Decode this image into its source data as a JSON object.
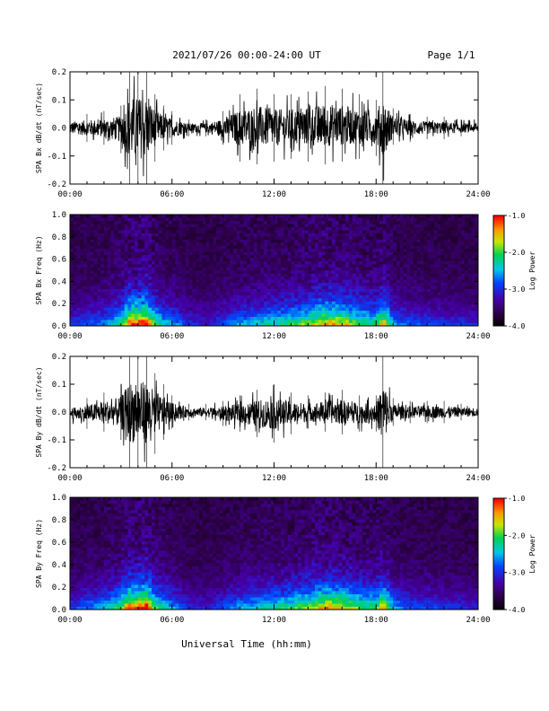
{
  "header": {
    "title": "2021/07/26  00:00-24:00 UT",
    "page": "Page 1/1"
  },
  "footer": {
    "xlabel": "Universal Time (hh:mm)"
  },
  "chart_data": [
    {
      "type": "line",
      "title": "",
      "ylabel": "SPA Bx dB/dt (nT/sec)",
      "xlabel": "Universal Time (hh:mm)",
      "xlim": [
        "00:00",
        "24:00"
      ],
      "xticks": [
        "00:00",
        "06:00",
        "12:00",
        "18:00",
        "24:00"
      ],
      "ylim": [
        -0.2,
        0.2
      ],
      "yticks": [
        "-0.2",
        "-0.1",
        "0.0",
        "0.1",
        "0.2"
      ],
      "x_hours": [
        0,
        1,
        2,
        3,
        3.5,
        4,
        4.5,
        5,
        5.5,
        6,
        7,
        8,
        9,
        10,
        11,
        12,
        13,
        14,
        15,
        16,
        17,
        18,
        18.4,
        19,
        20,
        21,
        22,
        23,
        24
      ],
      "series": [
        {
          "values": [
            0.04,
            0.05,
            0.06,
            0.08,
            0.2,
            0.2,
            0.2,
            0.12,
            0.08,
            0.06,
            0.03,
            0.03,
            0.06,
            0.12,
            0.14,
            0.12,
            0.12,
            0.13,
            0.15,
            0.14,
            0.12,
            0.1,
            0.2,
            0.07,
            0.05,
            0.04,
            0.04,
            0.03,
            0.03
          ]
        },
        {
          "values": [
            -0.04,
            -0.05,
            -0.06,
            -0.09,
            -0.2,
            -0.2,
            -0.2,
            -0.12,
            -0.08,
            -0.06,
            -0.03,
            -0.03,
            -0.06,
            -0.12,
            -0.13,
            -0.12,
            -0.11,
            -0.12,
            -0.13,
            -0.12,
            -0.11,
            -0.1,
            -0.2,
            -0.06,
            -0.05,
            -0.04,
            -0.04,
            -0.03,
            -0.03
          ]
        }
      ]
    },
    {
      "type": "heatmap",
      "title": "",
      "ylabel": "SPA Bx Freq (Hz)",
      "xlim": [
        "00:00",
        "24:00"
      ],
      "xticks": [
        "00:00",
        "06:00",
        "12:00",
        "18:00",
        "24:00"
      ],
      "ylim": [
        0.0,
        1.0
      ],
      "yticks": [
        "0.0",
        "0.2",
        "0.4",
        "0.6",
        "0.8",
        "1.0"
      ],
      "colorbar": {
        "label": "Log Power",
        "range": [
          -4.0,
          -1.0
        ],
        "ticks": [
          "-1.0",
          "-2.0",
          "-3.0",
          "-4.0"
        ],
        "colormap": "rainbow"
      },
      "x_hours": [
        0,
        1,
        2,
        3,
        3.5,
        4,
        4.5,
        5,
        5.5,
        6,
        7,
        8,
        9,
        10,
        11,
        12,
        13,
        14,
        15,
        16,
        17,
        18,
        18.4,
        19,
        20,
        21,
        22,
        23,
        24
      ],
      "activity": [
        0.25,
        0.3,
        0.35,
        0.55,
        0.85,
        0.9,
        0.95,
        0.6,
        0.45,
        0.4,
        0.25,
        0.2,
        0.3,
        0.4,
        0.45,
        0.5,
        0.55,
        0.65,
        0.8,
        0.75,
        0.6,
        0.55,
        0.8,
        0.4,
        0.3,
        0.3,
        0.25,
        0.25,
        0.2
      ]
    },
    {
      "type": "line",
      "title": "",
      "ylabel": "SPA By dB/dt (nT/sec)",
      "xlabel": "Universal Time (hh:mm)",
      "xlim": [
        "00:00",
        "24:00"
      ],
      "xticks": [
        "00:00",
        "06:00",
        "12:00",
        "18:00",
        "24:00"
      ],
      "ylim": [
        -0.2,
        0.2
      ],
      "yticks": [
        "-0.2",
        "-0.1",
        "0.0",
        "0.1",
        "0.2"
      ],
      "x_hours": [
        0,
        1,
        2,
        3,
        3.5,
        4,
        4.5,
        5,
        5.5,
        6,
        7,
        8,
        9,
        10,
        11,
        12,
        13,
        14,
        15,
        16,
        17,
        18,
        18.4,
        19,
        20,
        21,
        22,
        23,
        24
      ],
      "series": [
        {
          "values": [
            0.03,
            0.05,
            0.07,
            0.1,
            0.2,
            0.2,
            0.2,
            0.14,
            0.1,
            0.06,
            0.03,
            0.03,
            0.04,
            0.06,
            0.08,
            0.1,
            0.07,
            0.06,
            0.07,
            0.08,
            0.06,
            0.06,
            0.2,
            0.05,
            0.04,
            0.04,
            0.04,
            0.03,
            0.03
          ]
        },
        {
          "values": [
            -0.04,
            -0.06,
            -0.07,
            -0.1,
            -0.2,
            -0.2,
            -0.2,
            -0.15,
            -0.1,
            -0.06,
            -0.03,
            -0.03,
            -0.05,
            -0.07,
            -0.09,
            -0.11,
            -0.08,
            -0.06,
            -0.07,
            -0.08,
            -0.07,
            -0.07,
            -0.2,
            -0.05,
            -0.04,
            -0.04,
            -0.04,
            -0.03,
            -0.03
          ]
        }
      ]
    },
    {
      "type": "heatmap",
      "title": "",
      "ylabel": "SPA By Freq (Hz)",
      "xlim": [
        "00:00",
        "24:00"
      ],
      "xticks": [
        "00:00",
        "06:00",
        "12:00",
        "18:00",
        "24:00"
      ],
      "ylim": [
        0.0,
        1.0
      ],
      "yticks": [
        "0.0",
        "0.2",
        "0.4",
        "0.6",
        "0.8",
        "1.0"
      ],
      "colorbar": {
        "label": "Log Power",
        "range": [
          -4.0,
          -1.0
        ],
        "ticks": [
          "-1.0",
          "-2.0",
          "-3.0",
          "-4.0"
        ],
        "colormap": "rainbow"
      },
      "x_hours": [
        0,
        1,
        2,
        3,
        3.5,
        4,
        4.5,
        5,
        5.5,
        6,
        7,
        8,
        9,
        10,
        11,
        12,
        13,
        14,
        15,
        16,
        17,
        18,
        18.4,
        19,
        20,
        21,
        22,
        23,
        24
      ],
      "activity": [
        0.25,
        0.35,
        0.4,
        0.6,
        0.85,
        0.9,
        0.95,
        0.6,
        0.5,
        0.4,
        0.25,
        0.2,
        0.3,
        0.4,
        0.45,
        0.5,
        0.55,
        0.65,
        0.8,
        0.75,
        0.6,
        0.55,
        0.8,
        0.4,
        0.3,
        0.3,
        0.25,
        0.25,
        0.2
      ]
    }
  ]
}
